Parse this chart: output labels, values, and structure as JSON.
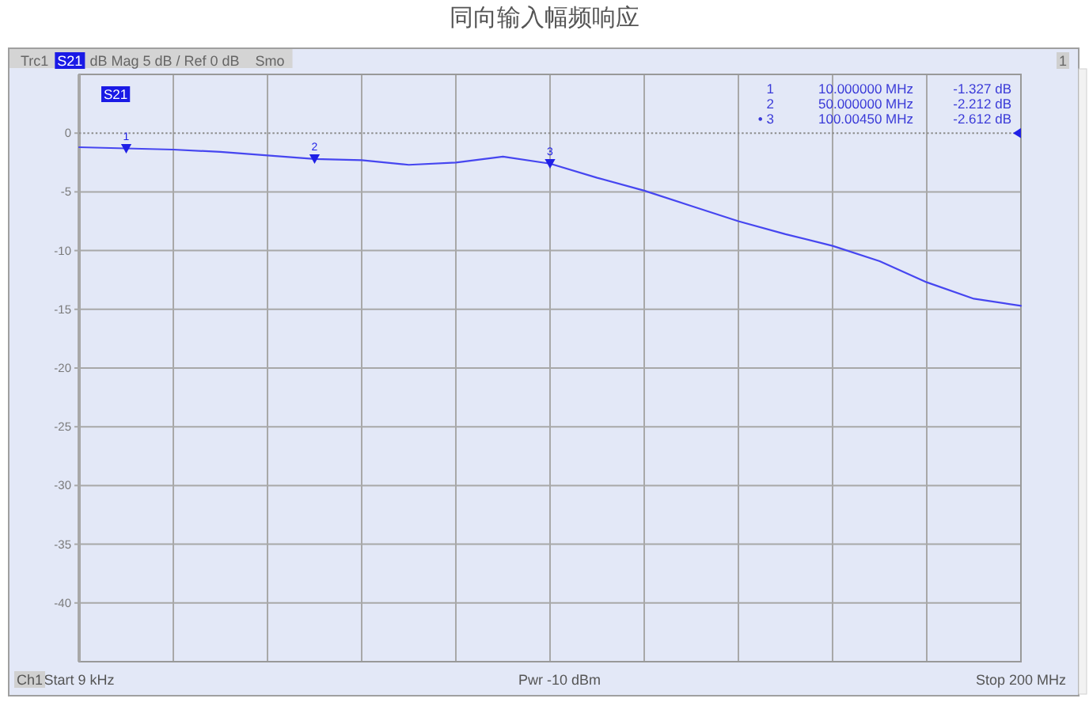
{
  "chart_data": {
    "type": "line",
    "title": "同向输入幅频响应",
    "categories": [
      "Start 9 kHz",
      null,
      null,
      null,
      null,
      null,
      null,
      null,
      null,
      null,
      null,
      null,
      null,
      null,
      null,
      null,
      null,
      null,
      null,
      null,
      "Stop 200 MHz"
    ],
    "series": [
      {
        "color": "#4646f0",
        "values": [
          -1.2,
          -1.3,
          -1.4,
          -1.6,
          -1.9,
          -2.2,
          -2.3,
          -2.7,
          -2.5,
          -2.0,
          -2.6,
          -3.8,
          -4.9,
          -6.2,
          -7.5,
          -8.6,
          -9.6,
          -10.9,
          -12.7,
          -14.1,
          -14.7
        ]
      },
      {
        "type": "scatter",
        "name": "1",
        "marker": "triangle",
        "color": "#1f1fe6",
        "values": [
          null,
          -1.327,
          null,
          null,
          null,
          null,
          null,
          null,
          null,
          null,
          null,
          null,
          null,
          null,
          null,
          null,
          null,
          null,
          null,
          null,
          null
        ]
      },
      {
        "type": "scatter",
        "name": "2",
        "marker": "triangle",
        "color": "#1f1fe6",
        "values": [
          null,
          null,
          null,
          null,
          null,
          -2.212,
          null,
          null,
          null,
          null,
          null,
          null,
          null,
          null,
          null,
          null,
          null,
          null,
          null,
          null,
          null
        ]
      },
      {
        "type": "scatter",
        "name": "3",
        "marker": "triangle",
        "color": "#1f1fe6",
        "values": [
          null,
          null,
          null,
          null,
          null,
          null,
          null,
          null,
          null,
          null,
          -2.612,
          null,
          null,
          null,
          null,
          null,
          null,
          null,
          null,
          null,
          null
        ]
      }
    ],
    "ylim": [
      -45,
      5
    ],
    "yticks": [
      0,
      -5,
      -10,
      -15,
      -20,
      -25,
      -30,
      -35,
      -40
    ],
    "grid": true,
    "ref_lines": [
      {
        "axis": "y",
        "value": 0,
        "color": "#8c8c8c",
        "line_style": "dotted"
      }
    ],
    "annotations": [
      "Trc1",
      "S21",
      "dB Mag 5 dB / Ref 0 dB",
      "Smo",
      "1",
      "S21",
      "Ch1",
      "Pwr -10 dBm",
      "1",
      "10.000000 MHz",
      "-1.327 dB",
      "2",
      "50.000000 MHz",
      "-2.212 dB",
      "• 3",
      "100.00450 MHz",
      "-2.612 dB"
    ]
  }
}
